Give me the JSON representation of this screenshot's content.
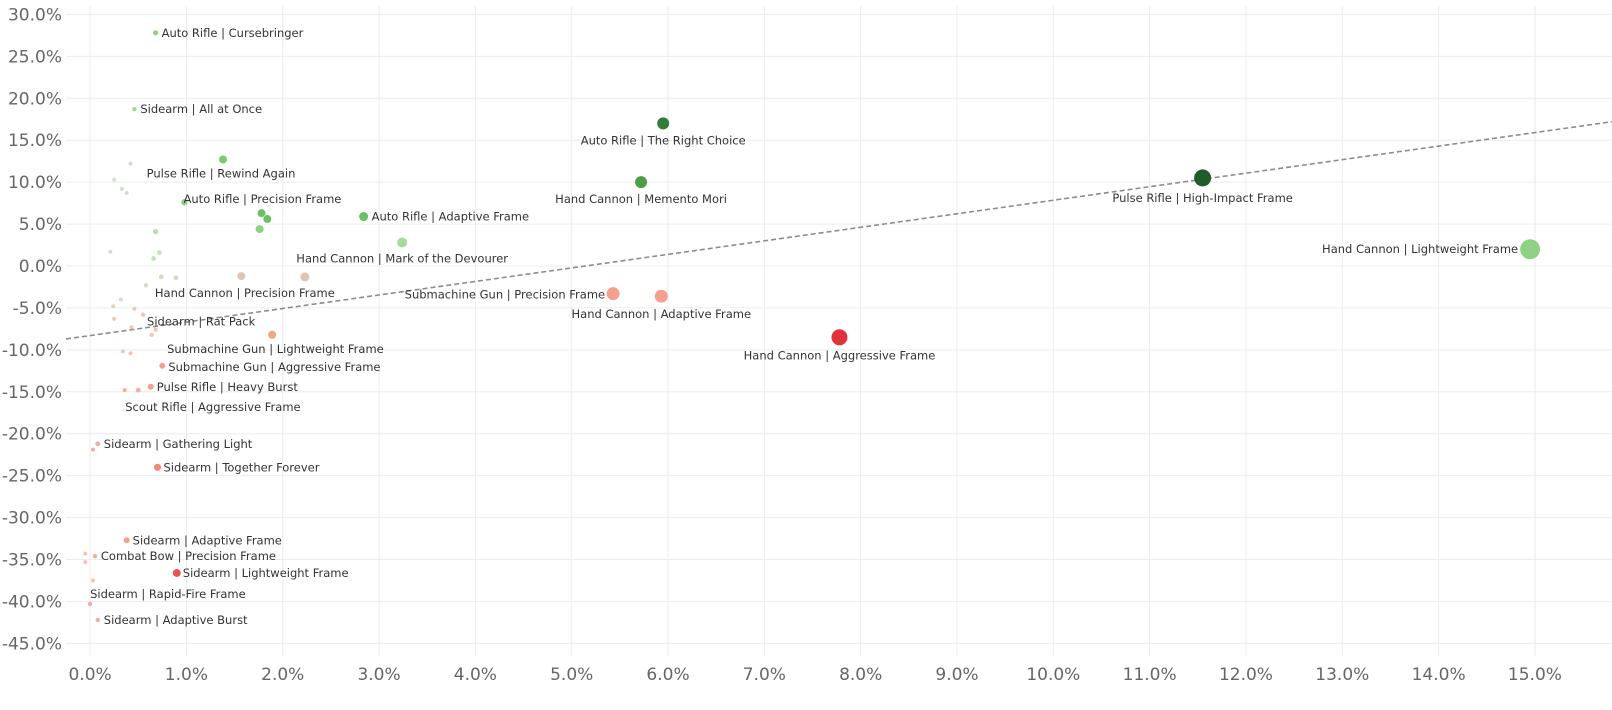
{
  "chart_data": {
    "type": "scatter",
    "title": "",
    "xlabel": "",
    "ylabel": "",
    "xlim": [
      -0.0025,
      0.158
    ],
    "ylim": [
      -0.465,
      0.31
    ],
    "x_ticks": [
      0,
      0.01,
      0.02,
      0.03,
      0.04,
      0.05,
      0.06,
      0.07,
      0.08,
      0.09,
      0.1,
      0.11,
      0.12,
      0.13,
      0.14,
      0.15
    ],
    "x_tick_labels": [
      "0.0%",
      "1.0%",
      "2.0%",
      "3.0%",
      "4.0%",
      "5.0%",
      "6.0%",
      "7.0%",
      "8.0%",
      "9.0%",
      "10.0%",
      "11.0%",
      "12.0%",
      "13.0%",
      "14.0%",
      "15.0%"
    ],
    "y_ticks": [
      0.3,
      0.25,
      0.2,
      0.15,
      0.1,
      0.05,
      0.0,
      -0.05,
      -0.1,
      -0.15,
      -0.2,
      -0.25,
      -0.3,
      -0.35,
      -0.4,
      -0.45
    ],
    "y_tick_labels": [
      "30.0%",
      "25.0%",
      "20.0%",
      "15.0%",
      "10.0%",
      "5.0%",
      "0.0%",
      "-5.0%",
      "-10.0%",
      "-15.0%",
      "-20.0%",
      "-25.0%",
      "-30.0%",
      "-35.0%",
      "-40.0%",
      "-45.0%"
    ],
    "grid": true,
    "trend_line": {
      "x": [
        -0.0025,
        0.158
      ],
      "y": [
        -0.087,
        0.172
      ],
      "style": "dashed",
      "color": "#8c8c8c"
    },
    "points": [
      {
        "label": "Auto Rifle | Cursebringer",
        "x": 0.0068,
        "y": 0.278,
        "size": 1.6,
        "color": "#7cc96f"
      },
      {
        "label": "Sidearm | All at Once",
        "x": 0.0046,
        "y": 0.187,
        "size": 1.2,
        "color": "#8fd184"
      },
      {
        "label": "Auto Rifle | The Right Choice",
        "x": 0.0595,
        "y": 0.17,
        "size": 5,
        "color": "#2e7d3b"
      },
      {
        "label": "Pulse Rifle | Rewind Again",
        "x": 0.0138,
        "y": 0.127,
        "size": 3,
        "color": "#7cc96f"
      },
      {
        "label": "Pulse Rifle | High-Impact Frame",
        "x": 0.1155,
        "y": 0.105,
        "size": 7.5,
        "color": "#1e5c2c"
      },
      {
        "label": "Hand Cannon | Memento Mori",
        "x": 0.0572,
        "y": 0.1,
        "size": 5,
        "color": "#4f9e47"
      },
      {
        "label": "Auto Rifle | Precision Frame",
        "x": 0.0178,
        "y": 0.063,
        "size": 3,
        "color": "#6cc064"
      },
      {
        "label": "Auto Rifle | Adaptive Frame",
        "x": 0.0284,
        "y": 0.059,
        "size": 3.5,
        "color": "#6cc064"
      },
      {
        "label": "Hand Cannon | Mark of the Devourer",
        "x": 0.0324,
        "y": 0.028,
        "size": 4,
        "color": "#a6d99c"
      },
      {
        "label": "Hand Cannon | Lightweight Frame",
        "x": 0.1495,
        "y": 0.02,
        "size": 9,
        "color": "#8fd184"
      },
      {
        "label": "Hand Cannon | Precision Frame",
        "x": 0.0223,
        "y": -0.013,
        "size": 3.5,
        "color": "#dcc5b5"
      },
      {
        "label": "Submachine Gun | Precision Frame",
        "x": 0.0543,
        "y": -0.033,
        "size": 5.5,
        "color": "#f3a08d"
      },
      {
        "label": "Hand Cannon | Adaptive Frame",
        "x": 0.0593,
        "y": -0.036,
        "size": 5.5,
        "color": "#f3a08d"
      },
      {
        "label": "Sidearm | Rat Pack",
        "x": 0.0055,
        "y": -0.058,
        "size": 1.2,
        "color": "#e6c0b0"
      },
      {
        "label": "Hand Cannon | Aggressive Frame",
        "x": 0.0778,
        "y": -0.085,
        "size": 7,
        "color": "#e0343a"
      },
      {
        "label": "Submachine Gun | Lightweight Frame",
        "x": 0.0189,
        "y": -0.082,
        "size": 3,
        "color": "#f3a08d"
      },
      {
        "label": "Submachine Gun | Aggressive Frame",
        "x": 0.0075,
        "y": -0.119,
        "size": 2,
        "color": "#f3a08d"
      },
      {
        "label": "Pulse Rifle | Heavy Burst",
        "x": 0.0063,
        "y": -0.144,
        "size": 2,
        "color": "#f3a08d"
      },
      {
        "label": "Scout Rifle | Aggressive Frame",
        "x": 0.005,
        "y": -0.148,
        "size": 1.4,
        "color": "#f3a08d"
      },
      {
        "label": "Sidearm | Gathering Light",
        "x": 0.0008,
        "y": -0.212,
        "size": 1.4,
        "color": "#f3a08d"
      },
      {
        "label": "Sidearm | Together Forever",
        "x": 0.007,
        "y": -0.24,
        "size": 2.6,
        "color": "#f08a74"
      },
      {
        "label": "Sidearm | Adaptive Frame",
        "x": 0.0038,
        "y": -0.327,
        "size": 2,
        "color": "#f3a08d"
      },
      {
        "label": "Combat Bow | Precision Frame",
        "x": 0.0005,
        "y": -0.346,
        "size": 1.2,
        "color": "#f3a08d"
      },
      {
        "label": "Sidearm | Lightweight Frame",
        "x": 0.009,
        "y": -0.366,
        "size": 3,
        "color": "#e8564f"
      },
      {
        "label": "Sidearm | Rapid-Fire Frame",
        "x": 0.0,
        "y": -0.403,
        "size": 1.2,
        "color": "#f3a08d"
      },
      {
        "label": "Sidearm | Adaptive Burst",
        "x": 0.0008,
        "y": -0.422,
        "size": 1.2,
        "color": "#f3a08d"
      },
      {
        "label": "",
        "x": 0.0042,
        "y": 0.122,
        "size": 1,
        "color": "#c8dcc2"
      },
      {
        "label": "",
        "x": 0.0025,
        "y": 0.103,
        "size": 1,
        "color": "#c8dcc2"
      },
      {
        "label": "",
        "x": 0.0033,
        "y": 0.092,
        "size": 1,
        "color": "#c8dcc2"
      },
      {
        "label": "",
        "x": 0.0038,
        "y": 0.087,
        "size": 1,
        "color": "#c8dcc2"
      },
      {
        "label": "",
        "x": 0.0098,
        "y": 0.076,
        "size": 2.2,
        "color": "#8fd184"
      },
      {
        "label": "",
        "x": 0.0184,
        "y": 0.056,
        "size": 3,
        "color": "#6cc064"
      },
      {
        "label": "",
        "x": 0.0176,
        "y": 0.044,
        "size": 3,
        "color": "#8fd184"
      },
      {
        "label": "",
        "x": 0.0068,
        "y": 0.041,
        "size": 1.6,
        "color": "#a6d99c"
      },
      {
        "label": "",
        "x": 0.0021,
        "y": 0.017,
        "size": 1,
        "color": "#c8dcc2"
      },
      {
        "label": "",
        "x": 0.0072,
        "y": 0.016,
        "size": 1.4,
        "color": "#b8deb0"
      },
      {
        "label": "",
        "x": 0.0066,
        "y": 0.009,
        "size": 1.4,
        "color": "#b8deb0"
      },
      {
        "label": "",
        "x": 0.0157,
        "y": -0.012,
        "size": 3,
        "color": "#dcc5b5"
      },
      {
        "label": "",
        "x": 0.0074,
        "y": -0.013,
        "size": 1.4,
        "color": "#d4d4b4"
      },
      {
        "label": "",
        "x": 0.0089,
        "y": -0.014,
        "size": 1.4,
        "color": "#d4d4b4"
      },
      {
        "label": "",
        "x": 0.0058,
        "y": -0.023,
        "size": 1.2,
        "color": "#d8cdbd"
      },
      {
        "label": "",
        "x": 0.0032,
        "y": -0.04,
        "size": 1,
        "color": "#d8cdbd"
      },
      {
        "label": "",
        "x": 0.0024,
        "y": -0.048,
        "size": 1,
        "color": "#d8cdbd"
      },
      {
        "label": "",
        "x": 0.0046,
        "y": -0.051,
        "size": 1,
        "color": "#e6c0b0"
      },
      {
        "label": "",
        "x": 0.0025,
        "y": -0.063,
        "size": 1,
        "color": "#e6c0b0"
      },
      {
        "label": "",
        "x": 0.0043,
        "y": -0.073,
        "size": 1,
        "color": "#e6c0b0"
      },
      {
        "label": "",
        "x": 0.0068,
        "y": -0.076,
        "size": 1.2,
        "color": "#e6c0b0"
      },
      {
        "label": "",
        "x": 0.0064,
        "y": -0.082,
        "size": 1.2,
        "color": "#e6c0b0"
      },
      {
        "label": "",
        "x": 0.0034,
        "y": -0.102,
        "size": 1,
        "color": "#f3b8a8"
      },
      {
        "label": "",
        "x": 0.0042,
        "y": -0.104,
        "size": 1,
        "color": "#f3b8a8"
      },
      {
        "label": "",
        "x": 0.0036,
        "y": -0.148,
        "size": 1,
        "color": "#f3a08d"
      },
      {
        "label": "",
        "x": 0.0003,
        "y": -0.219,
        "size": 1,
        "color": "#f3a08d"
      },
      {
        "label": "",
        "x": -0.0005,
        "y": -0.343,
        "size": 1,
        "color": "#f3b8a8"
      },
      {
        "label": "",
        "x": -0.0005,
        "y": -0.353,
        "size": 1,
        "color": "#f3b8a8"
      },
      {
        "label": "",
        "x": 0.0003,
        "y": -0.375,
        "size": 1,
        "color": "#f3b8a8"
      }
    ]
  }
}
